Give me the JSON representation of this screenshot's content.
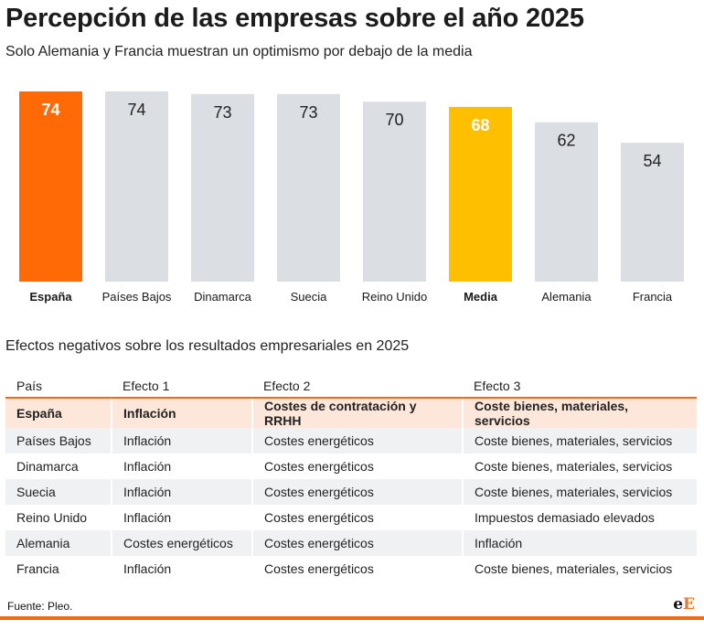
{
  "title": "Percepción de las empresas sobre el año 2025",
  "subtitle": "Solo Alemania y Francia muestran un optimismo por debajo de la media",
  "chart_data": {
    "type": "bar",
    "categories": [
      "España",
      "Países Bajos",
      "Dinamarca",
      "Suecia",
      "Reino Unido",
      "Media",
      "Alemania",
      "Francia"
    ],
    "values": [
      74,
      74,
      73,
      73,
      70,
      68,
      62,
      54
    ],
    "labels": [
      "74",
      "74",
      "73",
      "73",
      "70",
      "68",
      "62",
      "54"
    ],
    "colors": [
      "#ff6a07",
      "#dbdee2",
      "#dbdee2",
      "#dbdee2",
      "#dbdee2",
      "#fdbf00",
      "#dbdee2",
      "#dbdee2"
    ],
    "highlight_categories": [
      "España",
      "Media"
    ],
    "title": "Percepción de las empresas sobre el año 2025",
    "xlabel": "",
    "ylabel": "",
    "ylim": [
      0,
      74
    ],
    "grid": false,
    "legend": "none"
  },
  "table": {
    "title": "Efectos negativos sobre los resultados empresariales en 2025",
    "headers": [
      "País",
      "Efecto 1",
      "Efecto 2",
      "Efecto 3"
    ],
    "rows": [
      [
        "España",
        "Inflación",
        "Costes de contratación y RRHH",
        "Coste bienes, materiales, servicios"
      ],
      [
        "Países Bajos",
        "Inflación",
        "Costes energéticos",
        "Coste bienes, materiales, servicios"
      ],
      [
        "Dinamarca",
        "Inflación",
        "Costes energéticos",
        "Coste bienes, materiales, servicios"
      ],
      [
        "Suecia",
        "Inflación",
        "Costes energéticos",
        "Coste bienes, materiales, servicios"
      ],
      [
        "Reino Unido",
        "Inflación",
        "Costes energéticos",
        "Impuestos demasiado elevados"
      ],
      [
        "Alemania",
        "Costes energéticos",
        "Costes energéticos",
        "Inflación"
      ],
      [
        "Francia",
        "Inflación",
        "Costes energéticos",
        "Coste bienes, materiales, servicios"
      ]
    ],
    "highlight_row": "España"
  },
  "source": "Fuente: Pleo.",
  "logo": {
    "part1": "e",
    "part2": "E"
  }
}
